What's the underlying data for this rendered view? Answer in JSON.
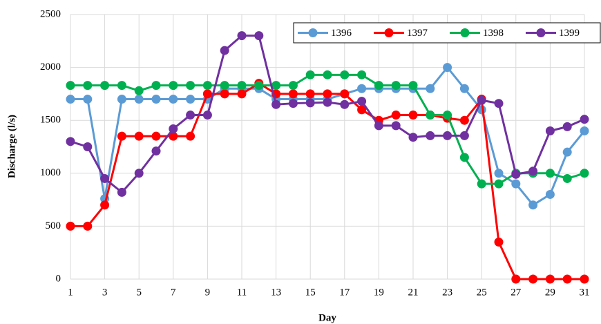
{
  "chart_data": {
    "type": "line",
    "x_label": "Day",
    "y_label": "Discharge (l/s)",
    "x": [
      1,
      2,
      3,
      4,
      5,
      6,
      7,
      8,
      9,
      10,
      11,
      12,
      13,
      14,
      15,
      16,
      17,
      18,
      19,
      20,
      21,
      22,
      23,
      24,
      25,
      26,
      27,
      28,
      29,
      30,
      31
    ],
    "xlim": [
      1,
      31
    ],
    "xticks": [
      1,
      3,
      5,
      7,
      9,
      11,
      13,
      15,
      17,
      19,
      21,
      23,
      25,
      27,
      29,
      31
    ],
    "ylim": [
      0,
      2500
    ],
    "yticks": [
      0,
      500,
      1000,
      1500,
      2000,
      2500
    ],
    "grid": true,
    "legend": "top-right",
    "series": [
      {
        "name": "1396",
        "color": "#5b9bd5",
        "values": [
          1700,
          1700,
          760,
          1700,
          1700,
          1700,
          1700,
          1700,
          1700,
          1800,
          1800,
          1800,
          1700,
          1700,
          1700,
          1700,
          1750,
          1800,
          1800,
          1800,
          1800,
          1800,
          2000,
          1800,
          1600,
          1000,
          900,
          700,
          800,
          1200,
          1400
        ]
      },
      {
        "name": "1397",
        "color": "#ff0000",
        "values": [
          500,
          500,
          700,
          1350,
          1350,
          1350,
          1350,
          1350,
          1750,
          1750,
          1750,
          1850,
          1750,
          1750,
          1750,
          1750,
          1750,
          1600,
          1500,
          1550,
          1550,
          1550,
          1520,
          1500,
          1700,
          350,
          0,
          0,
          0,
          0,
          0
        ]
      },
      {
        "name": "1398",
        "color": "#00b050",
        "values": [
          1830,
          1830,
          1830,
          1830,
          1780,
          1830,
          1830,
          1830,
          1830,
          1830,
          1830,
          1830,
          1830,
          1830,
          1930,
          1930,
          1930,
          1930,
          1830,
          1830,
          1830,
          1550,
          1550,
          1150,
          900,
          900,
          1000,
          1000,
          1000,
          950,
          1000
        ]
      },
      {
        "name": "1399",
        "color": "#7030a0",
        "values": [
          1300,
          1250,
          950,
          820,
          1000,
          1210,
          1420,
          1550,
          1550,
          2160,
          2300,
          2300,
          1650,
          1660,
          1665,
          1670,
          1650,
          1680,
          1450,
          1450,
          1340,
          1355,
          1355,
          1355,
          1690,
          1660,
          990,
          1020,
          1400,
          1440,
          1510
        ]
      }
    ]
  }
}
